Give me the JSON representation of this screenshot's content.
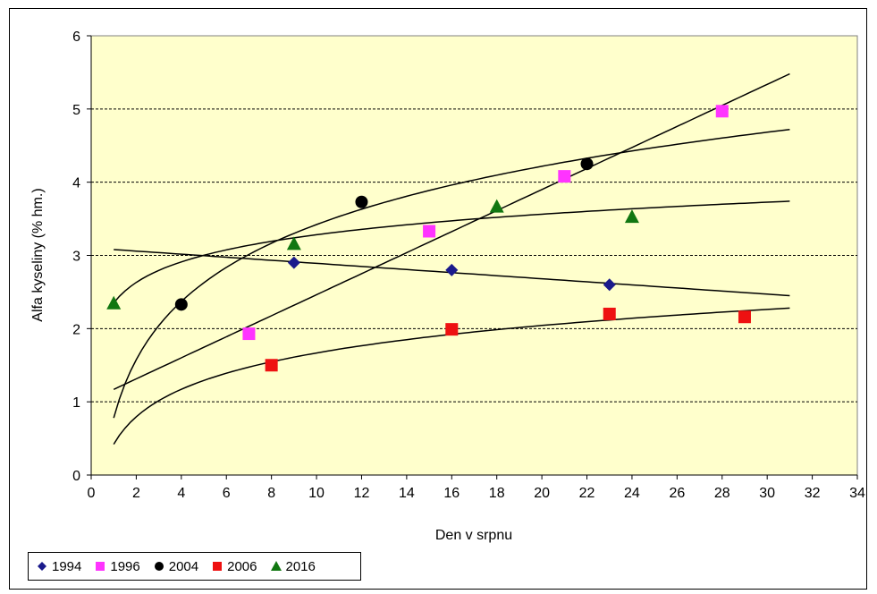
{
  "chart_data": {
    "type": "scatter",
    "title": "",
    "xlabel": "Den v srpnu",
    "ylabel": "Alfa kyseliny (% hm.)",
    "xlim": [
      0,
      34
    ],
    "ylim": [
      0,
      6
    ],
    "x_ticks": [
      "0",
      "2",
      "4",
      "6",
      "8",
      "10",
      "12",
      "14",
      "16",
      "18",
      "20",
      "22",
      "24",
      "26",
      "28",
      "30",
      "32",
      "34"
    ],
    "y_ticks": [
      "0",
      "1",
      "2",
      "3",
      "4",
      "5",
      "6"
    ],
    "grid": "horizontal dashed",
    "legend_position": "bottom-left",
    "series": [
      {
        "name": "1994",
        "color": "#1a1a8c",
        "marker": "diamond",
        "x": [
          9,
          16,
          23
        ],
        "y": [
          2.9,
          2.8,
          2.6
        ],
        "trend": "linear",
        "trend_x": [
          1,
          31
        ],
        "trend_y": [
          3.08,
          2.45
        ]
      },
      {
        "name": "1996",
        "color": "#ff33ff",
        "marker": "square",
        "x": [
          7,
          15,
          21,
          28
        ],
        "y": [
          1.93,
          3.33,
          4.08,
          4.97
        ],
        "trend": "linear",
        "trend_x": [
          1,
          31
        ],
        "trend_y": [
          1.17,
          5.48
        ]
      },
      {
        "name": "2004",
        "color": "#000000",
        "marker": "circle",
        "x": [
          4,
          12,
          22
        ],
        "y": [
          2.33,
          3.73,
          4.25
        ],
        "trend": "logarithmic",
        "trend_x": [
          1,
          31
        ],
        "trend_y": [
          0.78,
          4.72
        ]
      },
      {
        "name": "2006",
        "color": "#ee1111",
        "marker": "square",
        "x": [
          8,
          16,
          23,
          29
        ],
        "y": [
          1.5,
          1.99,
          2.2,
          2.16
        ],
        "trend": "logarithmic",
        "trend_x": [
          1,
          31
        ],
        "trend_y": [
          0.42,
          2.28
        ]
      },
      {
        "name": "2016",
        "color": "#117711",
        "marker": "triangle",
        "x": [
          1,
          9,
          18,
          24
        ],
        "y": [
          2.35,
          3.16,
          3.67,
          3.53
        ],
        "trend": "logarithmic",
        "trend_x": [
          1,
          31
        ],
        "trend_y": [
          2.35,
          3.74
        ]
      }
    ]
  }
}
